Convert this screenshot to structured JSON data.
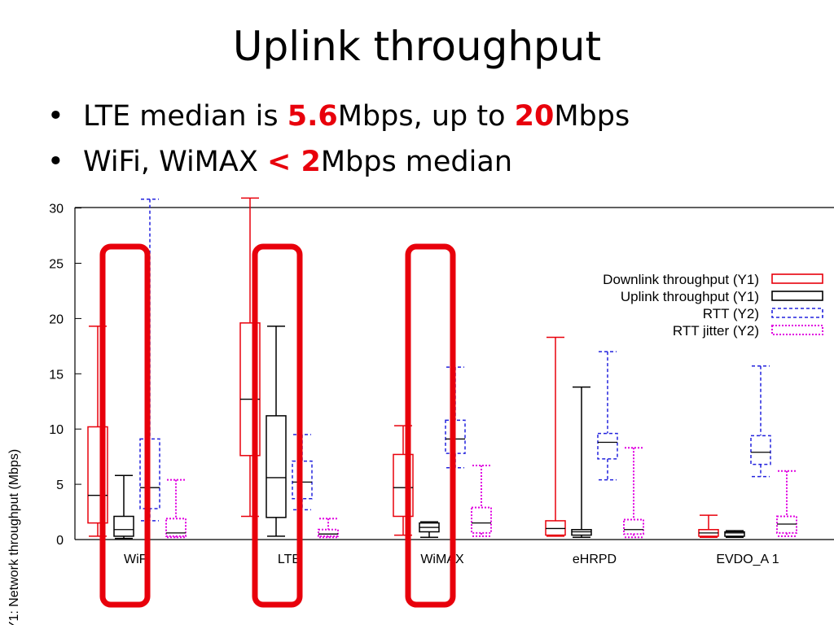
{
  "slide": {
    "title": "Uplink throughput",
    "bullets": [
      {
        "pre": "LTE median is ",
        "hl1": "5.6",
        "mid": "Mbps, up to ",
        "hl2": "20",
        "post": "Mbps"
      },
      {
        "pre": "WiFi, WiMAX ",
        "hl1": "< 2",
        "mid": "Mbps median",
        "hl2": "",
        "post": ""
      }
    ],
    "highlight_color": "#e8000b"
  },
  "chart_data": {
    "type": "boxplot",
    "ylabel": "Y1: Network throughput (Mbps)",
    "ylim": [
      0,
      30
    ],
    "yticks": [
      0,
      5,
      10,
      15,
      20,
      25,
      30
    ],
    "categories": [
      "WiFi",
      "LTE",
      "WiMAX",
      "eHRPD",
      "EVDO_A 1"
    ],
    "legend_position": "top-right",
    "series": [
      {
        "name": "Downlink throughput (Y1)",
        "color": "#e8000b",
        "style": "solid",
        "stats": [
          {
            "min": 0.3,
            "q1": 1.5,
            "median": 4.0,
            "q3": 10.2,
            "max": 19.3
          },
          {
            "min": 2.1,
            "q1": 7.6,
            "median": 12.7,
            "q3": 19.6,
            "max": 30.9
          },
          {
            "min": 0.4,
            "q1": 2.1,
            "median": 4.7,
            "q3": 7.7,
            "max": 10.3
          },
          {
            "min": 0.3,
            "q1": 0.4,
            "median": 1.0,
            "q3": 1.7,
            "max": 18.3
          },
          {
            "min": 0.2,
            "q1": 0.3,
            "median": 0.6,
            "q3": 0.9,
            "max": 2.2
          }
        ]
      },
      {
        "name": "Uplink throughput (Y1)",
        "color": "#000000",
        "style": "solid",
        "stats": [
          {
            "min": 0.1,
            "q1": 0.3,
            "median": 0.9,
            "q3": 2.1,
            "max": 5.8
          },
          {
            "min": 0.3,
            "q1": 2.0,
            "median": 5.6,
            "q3": 11.2,
            "max": 19.3
          },
          {
            "min": 0.2,
            "q1": 0.7,
            "median": 1.1,
            "q3": 1.5,
            "max": 1.6
          },
          {
            "min": 0.2,
            "q1": 0.4,
            "median": 0.7,
            "q3": 0.9,
            "max": 13.8
          },
          {
            "min": 0.2,
            "q1": 0.3,
            "median": 0.6,
            "q3": 0.7,
            "max": 0.8
          }
        ]
      },
      {
        "name": "RTT (Y2)",
        "color": "#2222dd",
        "style": "dashed",
        "stats": [
          {
            "min": 1.7,
            "q1": 2.8,
            "median": 4.7,
            "q3": 9.1,
            "max": 30.8
          },
          {
            "min": 2.7,
            "q1": 3.7,
            "median": 5.2,
            "q3": 7.1,
            "max": 9.5
          },
          {
            "min": 6.5,
            "q1": 7.8,
            "median": 9.1,
            "q3": 10.8,
            "max": 15.6
          },
          {
            "min": 5.4,
            "q1": 7.3,
            "median": 8.8,
            "q3": 9.6,
            "max": 17.0
          },
          {
            "min": 5.7,
            "q1": 6.8,
            "median": 7.9,
            "q3": 9.4,
            "max": 15.7
          }
        ]
      },
      {
        "name": "RTT jitter (Y2)",
        "color": "#e000e0",
        "style": "dotted",
        "stats": [
          {
            "min": 0.2,
            "q1": 0.3,
            "median": 0.6,
            "q3": 1.9,
            "max": 5.4
          },
          {
            "min": 0.2,
            "q1": 0.3,
            "median": 0.5,
            "q3": 0.9,
            "max": 1.9
          },
          {
            "min": 0.3,
            "q1": 0.6,
            "median": 1.5,
            "q3": 2.9,
            "max": 6.7
          },
          {
            "min": 0.2,
            "q1": 0.5,
            "median": 0.9,
            "q3": 1.8,
            "max": 8.3
          },
          {
            "min": 0.3,
            "q1": 0.6,
            "median": 1.4,
            "q3": 2.1,
            "max": 6.2
          }
        ]
      }
    ],
    "annotations": {
      "highlighted_series": "Uplink throughput (Y1)",
      "highlighted_categories": [
        "WiFi",
        "LTE",
        "WiMAX"
      ],
      "highlight_color": "#e8000b"
    }
  }
}
